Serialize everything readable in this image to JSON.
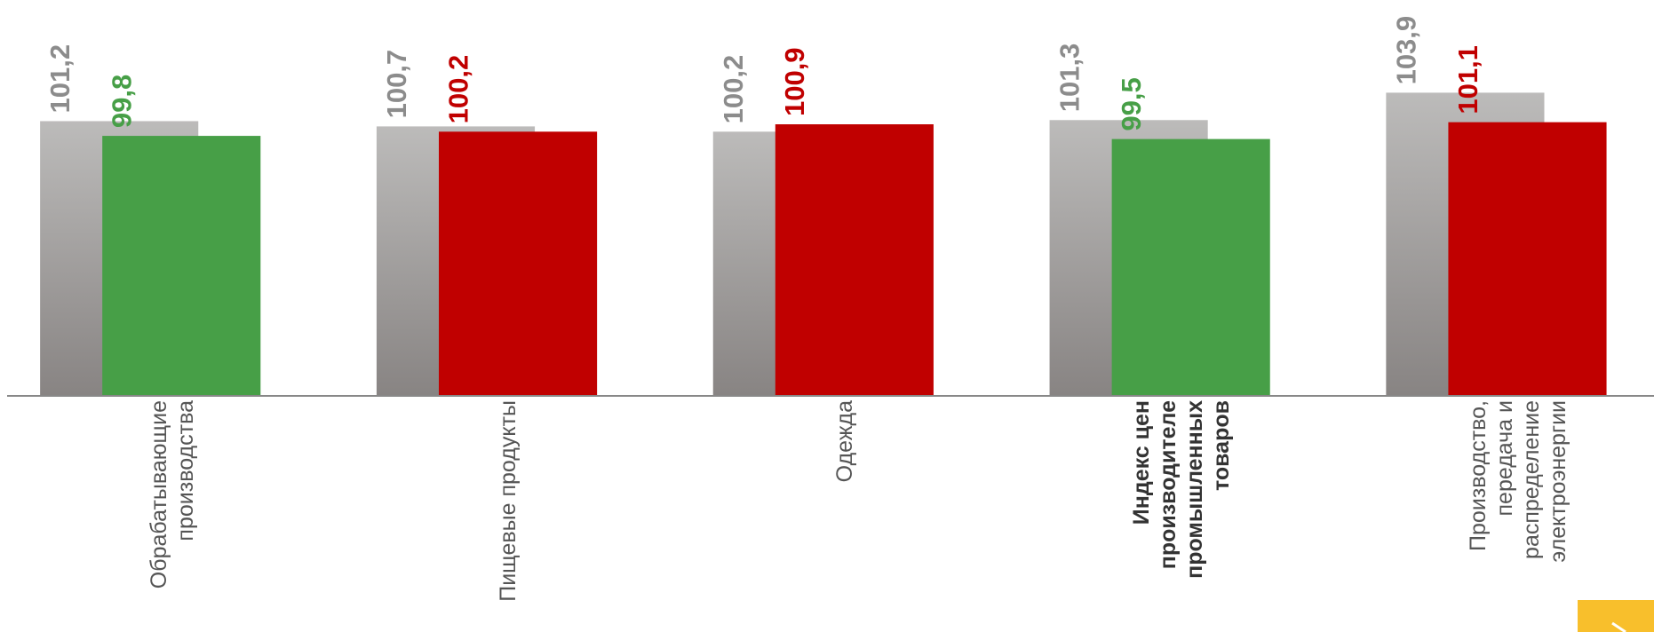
{
  "chart_data": {
    "type": "bar",
    "categories": [
      "Обрабатывающие\nпроизводства",
      "Пищевые продукты",
      "Одежда",
      "Индекс цен\nпроизводителе\nпромышленных\nтоваров",
      "Производство,\nпередача и\nраспределение\nэлектроэнергии"
    ],
    "bold_category": 3,
    "series": [
      {
        "color": "#a9a7a6",
        "values": [
          101.2,
          100.7,
          100.2,
          101.3,
          103.9
        ],
        "value_labels": [
          "101,2",
          "100,7",
          "100,2",
          "101,3",
          "103,9"
        ]
      },
      {
        "colors": [
          "#479f47",
          "#c00000",
          "#c00000",
          "#479f47",
          "#c00000"
        ],
        "values": [
          99.8,
          100.2,
          100.9,
          99.5,
          101.1
        ],
        "value_labels": [
          "99,8",
          "100,2",
          "100,9",
          "99,5",
          "101,1"
        ]
      }
    ],
    "ylim": [
      75.2,
      112.7
    ]
  }
}
